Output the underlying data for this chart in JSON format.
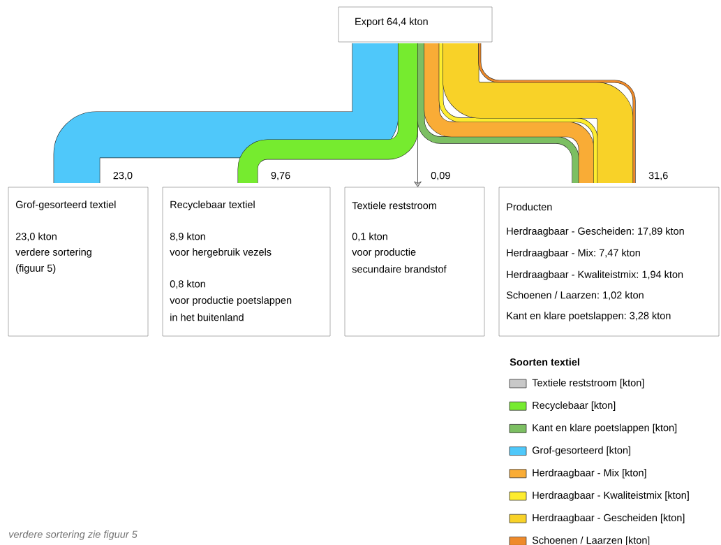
{
  "chart_data": {
    "type": "other",
    "title": "Export    64,4 kton",
    "categories": [
      "Grof-gesorteerd textiel",
      "Recyclebaar textiel",
      "Textiele reststroom",
      "Producten"
    ],
    "series": [
      {
        "name": "Textiele reststroom [kton]",
        "color": "#c8c8c8",
        "values": [
          null,
          null,
          0.09,
          null
        ],
        "value_labels": [
          null,
          null,
          "0,09",
          null
        ]
      },
      {
        "name": "Recyclebaar [kton]",
        "color": "#76eb2f",
        "values": [
          null,
          9.76,
          null,
          null
        ],
        "value_labels": [
          null,
          "9,76",
          null,
          null
        ]
      },
      {
        "name": "Kant en klare poetslappen [kton]",
        "color": "#7cbf62",
        "values": [
          null,
          null,
          null,
          3.28
        ],
        "value_labels": [
          null,
          null,
          null,
          "3,28 kton"
        ]
      },
      {
        "name": "Grof-gesorteerd [kton]",
        "color": "#4fc8fa",
        "values": [
          23.0,
          null,
          null,
          null
        ],
        "value_labels": [
          "23,0",
          null,
          null,
          null
        ]
      },
      {
        "name": "Herdraagbaar - Mix [kton]",
        "color": "#f9ac36",
        "values": [
          null,
          null,
          null,
          7.47
        ],
        "value_labels": [
          null,
          null,
          null,
          "7,47 kton"
        ]
      },
      {
        "name": "Herdraagbaar - Kwaliteistmix [kton]",
        "color": "#fdec2f",
        "values": [
          null,
          null,
          null,
          1.94
        ],
        "value_labels": [
          null,
          null,
          null,
          "1,94 kton"
        ]
      },
      {
        "name": "Herdraagbaar - Gescheiden [kton]",
        "color": "#f8d228",
        "values": [
          null,
          null,
          null,
          17.89
        ],
        "value_labels": [
          null,
          null,
          null,
          "17,89 kton"
        ]
      },
      {
        "name": "Schoenen / Laarzen [kton]",
        "color": "#ee8a2a",
        "values": [
          null,
          null,
          null,
          1.02
        ],
        "value_labels": [
          null,
          null,
          null,
          "1,02 kton"
        ]
      }
    ],
    "totals": [
      null,
      null,
      null,
      "31,6"
    ],
    "legend": "bottom right",
    "legend_title": "Soorten textiel",
    "annotations": [
      "23,0 kton",
      "verdere sortering",
      "(figuur 5)",
      "8,9 kton",
      "voor hergebruik vezels",
      "0,8 kton",
      "voor productie poetslappen",
      "in het buitenland",
      "0,1 kton",
      "voor productie",
      "secundaire brandstof",
      "Herdraagbaar - Gescheiden:",
      "Herdraagbaar - Mix:",
      "Herdraagbaar - Kwaliteistmix:",
      "Schoenen / Laarzen:",
      "Kant en klare poetslappen:",
      "verdere sortering zie figuur 5"
    ]
  }
}
